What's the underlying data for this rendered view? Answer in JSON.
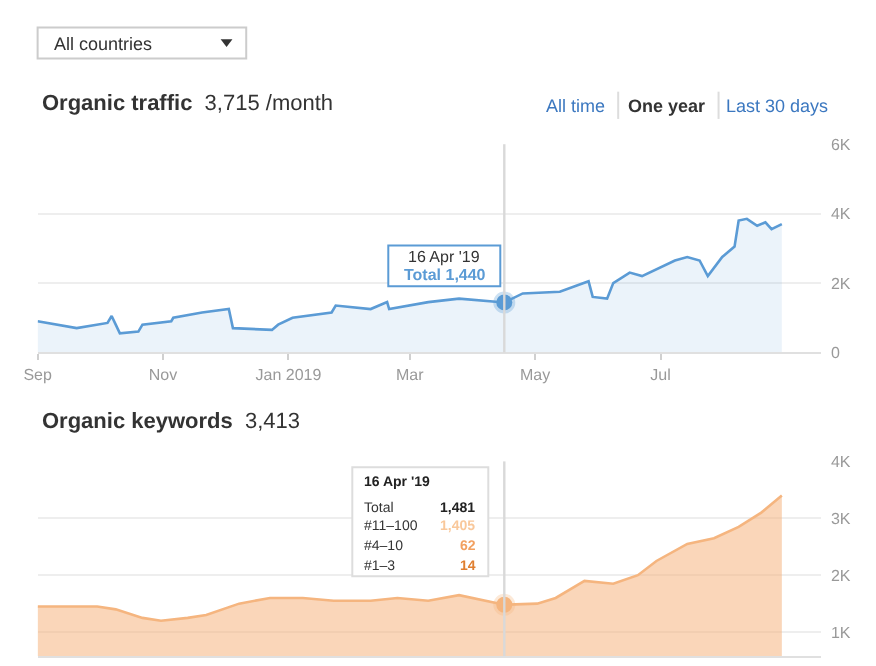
{
  "chart_data": [
    {
      "type": "area",
      "title": "Organic traffic",
      "subtitle": "3,715 /month",
      "color": "#5b9bd5",
      "annotations": [
        "All countries",
        "All time",
        "One year",
        "Last 30 days",
        "16 Apr '19",
        "Total 1,440"
      ],
      "x": [
        "2018-09-01",
        "2018-09-20",
        "2018-10-05",
        "2018-10-07",
        "2018-10-09",
        "2018-10-11",
        "2018-10-20",
        "2018-10-22",
        "2018-11-05",
        "2018-11-06",
        "2018-11-20",
        "2018-12-03",
        "2018-12-05",
        "2018-12-24",
        "2018-12-27",
        "2019-01-03",
        "2019-01-22",
        "2019-01-24",
        "2019-02-10",
        "2019-02-18",
        "2019-02-19",
        "2019-03-10",
        "2019-03-25",
        "2019-04-16",
        "2019-04-25",
        "2019-05-13",
        "2019-05-27",
        "2019-05-29",
        "2019-06-05",
        "2019-06-08",
        "2019-06-16",
        "2019-06-22",
        "2019-07-08",
        "2019-07-14",
        "2019-07-20",
        "2019-07-24",
        "2019-07-31",
        "2019-08-06",
        "2019-08-08",
        "2019-08-12",
        "2019-08-17",
        "2019-08-21",
        "2019-08-24",
        "2019-08-29"
      ],
      "values": [
        900,
        700,
        850,
        1050,
        800,
        550,
        600,
        800,
        900,
        1000,
        1150,
        1250,
        700,
        650,
        800,
        1000,
        1150,
        1350,
        1250,
        1450,
        1250,
        1450,
        1550,
        1440,
        1700,
        1750,
        2050,
        1600,
        1550,
        2000,
        2300,
        2200,
        2650,
        2750,
        2650,
        2200,
        2750,
        3050,
        3800,
        3850,
        3650,
        3750,
        3550,
        3700
      ],
      "xlim": [
        "2018-09-01",
        "2019-09-17"
      ],
      "xticks": [
        {
          "value": "2018-09-01",
          "label": "Sep"
        },
        {
          "value": "2018-11-01",
          "label": "Nov"
        },
        {
          "value": "2019-01-01",
          "label": "Jan 2019"
        },
        {
          "value": "2019-03-01",
          "label": "Mar"
        },
        {
          "value": "2019-05-01",
          "label": "May"
        },
        {
          "value": "2019-07-01",
          "label": "Jul"
        }
      ],
      "ylim": [
        0,
        6000
      ],
      "yticks": [
        0,
        {
          "value": 2000,
          "label": "2K"
        },
        {
          "value": 4000,
          "label": "4K"
        },
        {
          "value": 6000,
          "label": "6K"
        }
      ],
      "grid": "y",
      "ref_lines": [
        {
          "axis": "x",
          "value": "2019-04-16",
          "color": "#d9d9d9"
        }
      ]
    },
    {
      "type": "area",
      "title": "Organic keywords",
      "subtitle": "3,413",
      "color": "#f5b57f",
      "annotations": [
        "16 Apr '19",
        "Total",
        "1,481",
        "#11–100",
        "1,405",
        "#4–10",
        "62",
        "#1–3",
        "14"
      ],
      "x": [
        "2018-09-01",
        "2018-09-15",
        "2018-09-30",
        "2018-10-09",
        "2018-10-22",
        "2018-10-31",
        "2018-11-13",
        "2018-11-22",
        "2018-12-08",
        "2018-12-23",
        "2019-01-08",
        "2019-01-23",
        "2019-01-29",
        "2019-02-10",
        "2019-02-23",
        "2019-03-10",
        "2019-03-25",
        "2019-04-16",
        "2019-05-02",
        "2019-05-11",
        "2019-05-25",
        "2019-06-08",
        "2019-06-20",
        "2019-06-29",
        "2019-07-14",
        "2019-07-27",
        "2019-08-08",
        "2019-08-19",
        "2019-08-29"
      ],
      "values": [
        1450,
        1450,
        1450,
        1400,
        1250,
        1200,
        1250,
        1300,
        1500,
        1600,
        1600,
        1550,
        1550,
        1550,
        1600,
        1550,
        1650,
        1481,
        1500,
        1600,
        1900,
        1850,
        2000,
        2250,
        2550,
        2650,
        2850,
        3100,
        3400
      ],
      "xlim": [
        "2018-09-01",
        "2019-09-17"
      ],
      "ylim": [
        580,
        4000
      ],
      "yticks": [
        {
          "value": 1000,
          "label": "1K"
        },
        {
          "value": 2000,
          "label": "2K"
        },
        {
          "value": 3000,
          "label": "3K"
        },
        {
          "value": 4000,
          "label": "4K"
        }
      ],
      "tick_labels": "y",
      "grid": "y",
      "ref_lines": [
        {
          "axis": "x",
          "value": "2019-04-16",
          "color": "#d9d9d9"
        }
      ]
    }
  ]
}
